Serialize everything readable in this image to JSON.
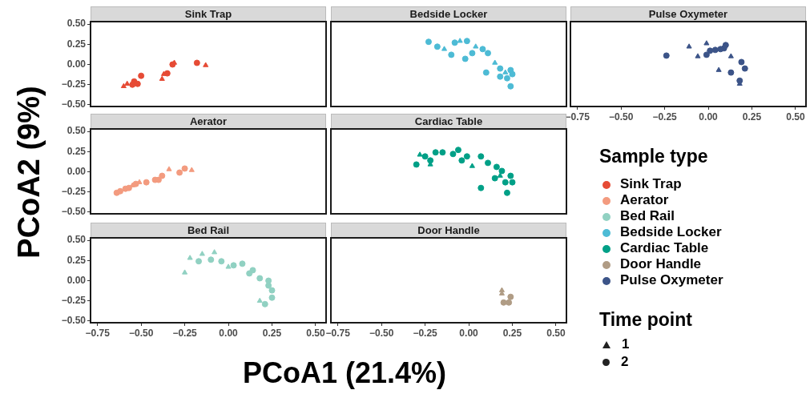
{
  "chart_data": [
    {
      "type": "scatter",
      "title": "Sink Trap",
      "ylabel": "PCoA2 (9%)",
      "tick_labels": "y",
      "xlim": [
        -0.79,
        0.56
      ],
      "ylim": [
        -0.52,
        0.53
      ],
      "yticks": [
        {
          "value": -0.5,
          "label": "−0.50"
        },
        {
          "value": -0.25,
          "label": "−0.25"
        },
        {
          "value": 0,
          "label": "0.00"
        },
        {
          "value": 0.25,
          "label": "0.25"
        },
        {
          "value": 0.5,
          "label": "0.50"
        }
      ],
      "series": [
        {
          "color": "#e64b35",
          "marker": "triangle",
          "x": [
            -0.6,
            -0.58,
            -0.31,
            -0.37,
            -0.38,
            -0.13
          ],
          "values": [
            -0.27,
            -0.24,
            0.02,
            -0.12,
            -0.18,
            -0.01
          ]
        },
        {
          "color": "#e64b35",
          "marker": "circle",
          "x": [
            -0.54,
            -0.52,
            -0.55,
            -0.5,
            -0.32,
            -0.35,
            -0.18
          ],
          "values": [
            -0.21,
            -0.24,
            -0.25,
            -0.14,
            0.0,
            -0.11,
            0.02
          ]
        }
      ]
    },
    {
      "type": "scatter",
      "title": "Bedside Locker",
      "tick_labels": false,
      "xlim": [
        -0.79,
        0.56
      ],
      "ylim": [
        -0.52,
        0.53
      ],
      "series": [
        {
          "color": "#4dbbd5",
          "marker": "triangle",
          "x": [
            -0.14,
            -0.05,
            0.21,
            0.15,
            0.04
          ],
          "values": [
            0.19,
            0.29,
            -0.1,
            0.02,
            0.22
          ]
        },
        {
          "color": "#4dbbd5",
          "marker": "circle",
          "x": [
            -0.23,
            -0.18,
            -0.1,
            -0.08,
            -0.02,
            -0.01,
            0.08,
            0.1,
            0.18,
            0.24,
            0.24,
            0.25,
            0.18,
            0.11,
            0.22,
            0.02
          ],
          "values": [
            0.28,
            0.22,
            0.12,
            0.27,
            0.07,
            0.29,
            0.19,
            -0.1,
            -0.05,
            -0.07,
            -0.27,
            -0.12,
            -0.15,
            0.14,
            -0.17,
            0.14
          ]
        }
      ]
    },
    {
      "type": "scatter",
      "title": "Pulse Oxymeter",
      "tick_labels": "x",
      "xlim": [
        -0.79,
        0.56
      ],
      "ylim": [
        -0.52,
        0.53
      ],
      "xticks": [
        {
          "value": -0.75,
          "label": "−0.75"
        },
        {
          "value": -0.5,
          "label": "−0.50"
        },
        {
          "value": -0.25,
          "label": "−0.25"
        },
        {
          "value": 0,
          "label": "0.00"
        },
        {
          "value": 0.25,
          "label": "0.25"
        },
        {
          "value": 0.5,
          "label": "0.50"
        }
      ],
      "series": [
        {
          "color": "#3c5488",
          "marker": "triangle",
          "x": [
            -0.11,
            -0.01,
            -0.06,
            0.13,
            0.06,
            0.18
          ],
          "values": [
            0.22,
            0.26,
            0.1,
            0.1,
            -0.07,
            -0.24
          ]
        },
        {
          "color": "#3c5488",
          "marker": "circle",
          "x": [
            -0.24,
            0.01,
            0.04,
            0.1,
            0.09,
            0.19,
            0.21,
            0.13,
            0.18,
            -0.01,
            0.07
          ],
          "values": [
            0.11,
            0.17,
            0.18,
            0.24,
            0.2,
            0.03,
            -0.05,
            -0.1,
            -0.2,
            0.12,
            0.19
          ]
        }
      ]
    },
    {
      "type": "scatter",
      "title": "Aerator",
      "tick_labels": "y",
      "xlim": [
        -0.79,
        0.56
      ],
      "ylim": [
        -0.52,
        0.53
      ],
      "yticks": [
        {
          "value": -0.5,
          "label": "−0.50"
        },
        {
          "value": -0.25,
          "label": "−0.25"
        },
        {
          "value": 0,
          "label": "0.00"
        },
        {
          "value": 0.25,
          "label": "0.25"
        },
        {
          "value": 0.5,
          "label": "0.50"
        }
      ],
      "series": [
        {
          "color": "#f39b7f",
          "marker": "triangle",
          "x": [
            -0.34,
            -0.21,
            -0.55,
            -0.51
          ],
          "values": [
            0.03,
            0.02,
            -0.17,
            -0.13
          ]
        },
        {
          "color": "#f39b7f",
          "marker": "circle",
          "x": [
            -0.64,
            -0.62,
            -0.59,
            -0.57,
            -0.53,
            -0.47,
            -0.42,
            -0.4,
            -0.38,
            -0.28,
            -0.25
          ],
          "values": [
            -0.26,
            -0.24,
            -0.21,
            -0.2,
            -0.15,
            -0.13,
            -0.1,
            -0.1,
            -0.05,
            -0.01,
            0.04
          ]
        }
      ]
    },
    {
      "type": "scatter",
      "title": "Cardiac Table",
      "tick_labels": false,
      "xlim": [
        -0.79,
        0.56
      ],
      "ylim": [
        -0.52,
        0.53
      ],
      "series": [
        {
          "color": "#00a087",
          "marker": "triangle",
          "x": [
            -0.28,
            -0.22,
            0.02,
            0.18
          ],
          "values": [
            0.21,
            0.09,
            0.07,
            -0.05
          ]
        },
        {
          "color": "#00a087",
          "marker": "circle",
          "x": [
            -0.3,
            -0.25,
            -0.22,
            -0.19,
            -0.15,
            -0.09,
            -0.06,
            -0.04,
            -0.01,
            0.07,
            0.11,
            0.16,
            0.19,
            0.24,
            0.25,
            0.22,
            0.07,
            0.15,
            0.21
          ],
          "values": [
            0.09,
            0.19,
            0.14,
            0.24,
            0.24,
            0.22,
            0.27,
            0.14,
            0.19,
            0.19,
            0.11,
            0.06,
            0.01,
            -0.05,
            -0.13,
            -0.26,
            -0.2,
            -0.08,
            -0.13
          ]
        }
      ]
    },
    {
      "type": "scatter",
      "title": "Bed Rail",
      "xlabel": "PCoA1 (21.4%)",
      "xlim": [
        -0.79,
        0.56
      ],
      "ylim": [
        -0.52,
        0.53
      ],
      "xticks": [
        {
          "value": -0.75,
          "label": "−0.75"
        },
        {
          "value": -0.5,
          "label": "−0.50"
        },
        {
          "value": -0.25,
          "label": "−0.25"
        },
        {
          "value": 0,
          "label": "0.00"
        },
        {
          "value": 0.25,
          "label": "0.25"
        },
        {
          "value": 0.5,
          "label": "0.50"
        }
      ],
      "yticks": [
        {
          "value": -0.5,
          "label": "−0.50"
        },
        {
          "value": -0.25,
          "label": "−0.25"
        },
        {
          "value": 0,
          "label": "0.00"
        },
        {
          "value": 0.25,
          "label": "0.25"
        },
        {
          "value": 0.5,
          "label": "0.50"
        }
      ],
      "series": [
        {
          "color": "#91d1c2",
          "marker": "triangle",
          "x": [
            -0.25,
            -0.22,
            -0.15,
            -0.08,
            0.18,
            0.0
          ],
          "values": [
            0.1,
            0.28,
            0.33,
            0.35,
            -0.25,
            0.17
          ]
        },
        {
          "color": "#91d1c2",
          "marker": "circle",
          "x": [
            -0.17,
            -0.1,
            -0.04,
            0.03,
            0.08,
            0.14,
            0.18,
            0.23,
            0.25,
            0.25,
            0.21,
            0.12,
            0.23
          ],
          "values": [
            0.24,
            0.26,
            0.24,
            0.19,
            0.21,
            0.13,
            0.03,
            0.0,
            -0.12,
            -0.21,
            -0.29,
            0.09,
            -0.06
          ]
        }
      ]
    },
    {
      "type": "scatter",
      "title": "Door Handle",
      "tick_labels": "x",
      "xlim": [
        -0.79,
        0.56
      ],
      "ylim": [
        -0.52,
        0.53
      ],
      "xticks": [
        {
          "value": -0.75,
          "label": "−0.75"
        },
        {
          "value": -0.5,
          "label": "−0.50"
        },
        {
          "value": -0.25,
          "label": "−0.25"
        },
        {
          "value": 0,
          "label": "0.00"
        },
        {
          "value": 0.25,
          "label": "0.25"
        },
        {
          "value": 0.5,
          "label": "0.50"
        }
      ],
      "series": [
        {
          "color": "#b09c85",
          "marker": "triangle",
          "x": [
            0.19,
            0.19
          ],
          "values": [
            -0.12,
            -0.16
          ]
        },
        {
          "color": "#b09c85",
          "marker": "circle",
          "x": [
            0.24,
            0.2,
            0.23
          ],
          "values": [
            -0.2,
            -0.27,
            -0.27
          ]
        }
      ]
    },
    {
      "type": "other",
      "legend_title": "Sample type",
      "series": [
        {
          "name": "Sink Trap",
          "color": "#e64b35"
        },
        {
          "name": "Aerator",
          "color": "#f39b7f"
        },
        {
          "name": "Bed Rail",
          "color": "#91d1c2"
        },
        {
          "name": "Bedside Locker",
          "color": "#4dbbd5"
        },
        {
          "name": "Cardiac Table",
          "color": "#00a087"
        },
        {
          "name": "Door Handle",
          "color": "#b09c85"
        },
        {
          "name": "Pulse Oxymeter",
          "color": "#3c5488"
        }
      ],
      "annotations": [
        "Time point",
        "1",
        "2"
      ]
    }
  ]
}
